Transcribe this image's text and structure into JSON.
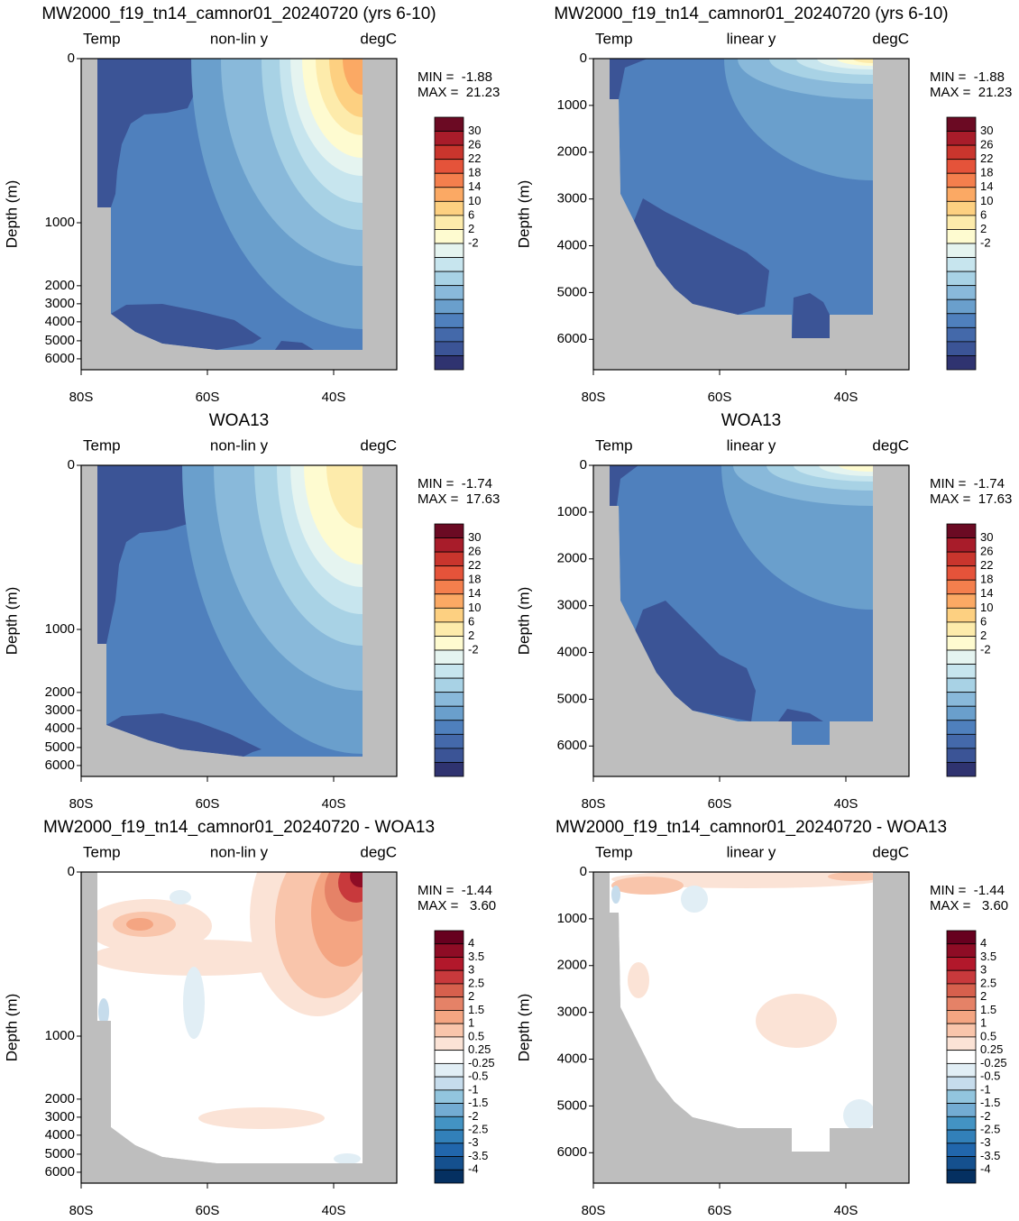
{
  "chart_data": [
    {
      "type": "contour",
      "title": "MW2000_f19_tn14_camnor01_20240720 (yrs 6-10)",
      "left_label": "Temp",
      "center_label": "non-lin y",
      "right_label": "degC",
      "stats": [
        "MIN =  -1.88",
        "MAX =  21.23"
      ],
      "ylabel": "Depth (m)",
      "yscale": "nonlinear",
      "ylim": [
        0,
        6600
      ],
      "yticks": [
        0,
        1000,
        2000,
        3000,
        4000,
        5000,
        6000
      ],
      "xlim": [
        -80,
        -30
      ],
      "xticks": [
        {
          "value": -80,
          "label": "80S"
        },
        {
          "value": -60,
          "label": "60S"
        },
        {
          "value": -40,
          "label": "40S"
        }
      ],
      "colorbar": {
        "labels": [
          30,
          26,
          22,
          18,
          14,
          10,
          6,
          2,
          -2
        ],
        "colors": [
          "#6b0a23",
          "#a81c2a",
          "#c9352d",
          "#e5533a",
          "#f47f4d",
          "#fba964",
          "#fdd081",
          "#fdebab",
          "#fefbd0",
          "#e5f4f0",
          "#c7e5ee",
          "#a8d2e5",
          "#89b9da",
          "#6a9fcc",
          "#4f80bd",
          "#4469aa",
          "#3b5496",
          "#2f3370"
        ]
      }
    },
    {
      "type": "contour",
      "title": "MW2000_f19_tn14_camnor01_20240720 (yrs 6-10)",
      "left_label": "Temp",
      "center_label": "linear y",
      "right_label": "degC",
      "stats": [
        "MIN =  -1.88",
        "MAX =  21.23"
      ],
      "ylabel": "Depth (m)",
      "yscale": "linear",
      "ylim": [
        0,
        6650
      ],
      "yticks": [
        0,
        1000,
        2000,
        3000,
        4000,
        5000,
        6000
      ],
      "xlim": [
        -80,
        -30
      ],
      "xticks": [
        {
          "value": -80,
          "label": "80S"
        },
        {
          "value": -60,
          "label": "60S"
        },
        {
          "value": -40,
          "label": "40S"
        }
      ],
      "colorbar": {
        "labels": [
          30,
          26,
          22,
          18,
          14,
          10,
          6,
          2,
          -2
        ],
        "colors": [
          "#6b0a23",
          "#a81c2a",
          "#c9352d",
          "#e5533a",
          "#f47f4d",
          "#fba964",
          "#fdd081",
          "#fdebab",
          "#fefbd0",
          "#e5f4f0",
          "#c7e5ee",
          "#a8d2e5",
          "#89b9da",
          "#6a9fcc",
          "#4f80bd",
          "#4469aa",
          "#3b5496",
          "#2f3370"
        ]
      }
    },
    {
      "type": "contour",
      "title": "WOA13",
      "left_label": "Temp",
      "center_label": "non-lin y",
      "right_label": "degC",
      "stats": [
        "MIN =  -1.74",
        "MAX =  17.63"
      ],
      "ylabel": "Depth (m)",
      "yscale": "nonlinear",
      "ylim": [
        0,
        6600
      ],
      "yticks": [
        0,
        1000,
        2000,
        3000,
        4000,
        5000,
        6000
      ],
      "xlim": [
        -80,
        -30
      ],
      "xticks": [
        {
          "value": -80,
          "label": "80S"
        },
        {
          "value": -60,
          "label": "60S"
        },
        {
          "value": -40,
          "label": "40S"
        }
      ],
      "colorbar": {
        "labels": [
          30,
          26,
          22,
          18,
          14,
          10,
          6,
          2,
          -2
        ],
        "colors": [
          "#6b0a23",
          "#a81c2a",
          "#c9352d",
          "#e5533a",
          "#f47f4d",
          "#fba964",
          "#fdd081",
          "#fdebab",
          "#fefbd0",
          "#e5f4f0",
          "#c7e5ee",
          "#a8d2e5",
          "#89b9da",
          "#6a9fcc",
          "#4f80bd",
          "#4469aa",
          "#3b5496",
          "#2f3370"
        ]
      }
    },
    {
      "type": "contour",
      "title": "WOA13",
      "left_label": "Temp",
      "center_label": "linear y",
      "right_label": "degC",
      "stats": [
        "MIN =  -1.74",
        "MAX =  17.63"
      ],
      "ylabel": "Depth (m)",
      "yscale": "linear",
      "ylim": [
        0,
        6650
      ],
      "yticks": [
        0,
        1000,
        2000,
        3000,
        4000,
        5000,
        6000
      ],
      "xlim": [
        -80,
        -30
      ],
      "xticks": [
        {
          "value": -80,
          "label": "80S"
        },
        {
          "value": -60,
          "label": "60S"
        },
        {
          "value": -40,
          "label": "40S"
        }
      ],
      "colorbar": {
        "labels": [
          30,
          26,
          22,
          18,
          14,
          10,
          6,
          2,
          -2
        ],
        "colors": [
          "#6b0a23",
          "#a81c2a",
          "#c9352d",
          "#e5533a",
          "#f47f4d",
          "#fba964",
          "#fdd081",
          "#fdebab",
          "#fefbd0",
          "#e5f4f0",
          "#c7e5ee",
          "#a8d2e5",
          "#89b9da",
          "#6a9fcc",
          "#4f80bd",
          "#4469aa",
          "#3b5496",
          "#2f3370"
        ]
      }
    },
    {
      "type": "contour-diff",
      "title": "MW2000_f19_tn14_camnor01_20240720 - WOA13",
      "left_label": "Temp",
      "center_label": "non-lin y",
      "right_label": "degC",
      "stats": [
        "MIN =  -1.44",
        "MAX =   3.60"
      ],
      "ylabel": "Depth (m)",
      "yscale": "nonlinear",
      "ylim": [
        0,
        6600
      ],
      "yticks": [
        0,
        1000,
        2000,
        3000,
        4000,
        5000,
        6000
      ],
      "xlim": [
        -80,
        -30
      ],
      "xticks": [
        {
          "value": -80,
          "label": "80S"
        },
        {
          "value": -60,
          "label": "60S"
        },
        {
          "value": -40,
          "label": "40S"
        }
      ],
      "colorbar": {
        "labels": [
          4,
          3.5,
          3,
          2.5,
          2,
          1.5,
          1,
          0.5,
          0.25,
          -0.25,
          -0.5,
          -1,
          -1.5,
          -2,
          -2.5,
          -3,
          -3.5,
          -4
        ],
        "colors": [
          "#67001f",
          "#8e0c25",
          "#b2182b",
          "#c8393c",
          "#d6604d",
          "#e58267",
          "#f4a582",
          "#f9c5ab",
          "#fbe3d6",
          "#ffffff",
          "#e1eef5",
          "#c6dcec",
          "#92c5de",
          "#73acd3",
          "#4393c3",
          "#3280b9",
          "#2166ac",
          "#15508e",
          "#053061"
        ]
      }
    },
    {
      "type": "contour-diff",
      "title": "MW2000_f19_tn14_camnor01_20240720 - WOA13",
      "left_label": "Temp",
      "center_label": "linear y",
      "right_label": "degC",
      "stats": [
        "MIN =  -1.44",
        "MAX =   3.60"
      ],
      "ylabel": "Depth (m)",
      "yscale": "linear",
      "ylim": [
        0,
        6650
      ],
      "yticks": [
        0,
        1000,
        2000,
        3000,
        4000,
        5000,
        6000
      ],
      "xlim": [
        -80,
        -30
      ],
      "xticks": [
        {
          "value": -80,
          "label": "80S"
        },
        {
          "value": -60,
          "label": "60S"
        },
        {
          "value": -40,
          "label": "40S"
        }
      ],
      "colorbar": {
        "labels": [
          4,
          3.5,
          3,
          2.5,
          2,
          1.5,
          1,
          0.5,
          0.25,
          -0.25,
          -0.5,
          -1,
          -1.5,
          -2,
          -2.5,
          -3,
          -3.5,
          -4
        ],
        "colors": [
          "#67001f",
          "#8e0c25",
          "#b2182b",
          "#c8393c",
          "#d6604d",
          "#e58267",
          "#f4a582",
          "#f9c5ab",
          "#fbe3d6",
          "#ffffff",
          "#e1eef5",
          "#c6dcec",
          "#92c5de",
          "#73acd3",
          "#4393c3",
          "#3280b9",
          "#2166ac",
          "#15508e",
          "#053061"
        ]
      }
    }
  ]
}
